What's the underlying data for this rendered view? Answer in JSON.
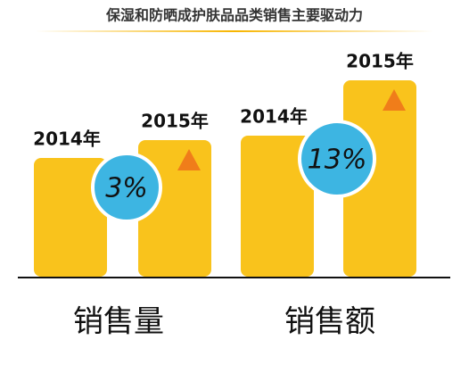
{
  "chart_data": {
    "type": "bar",
    "title": "保湿和防晒成护肤品品类销售主要驱动力",
    "categories": [
      "销售量",
      "销售额"
    ],
    "series": [
      {
        "name": "2014年",
        "color": "#f9c31c",
        "values": [
          133,
          158
        ]
      },
      {
        "name": "2015年",
        "color": "#f9c31c",
        "values": [
          153,
          220
        ]
      }
    ],
    "growth": {
      "values": [
        3,
        13
      ],
      "value_labels": [
        "3%",
        "13%"
      ],
      "color": "#3db5e2"
    }
  }
}
